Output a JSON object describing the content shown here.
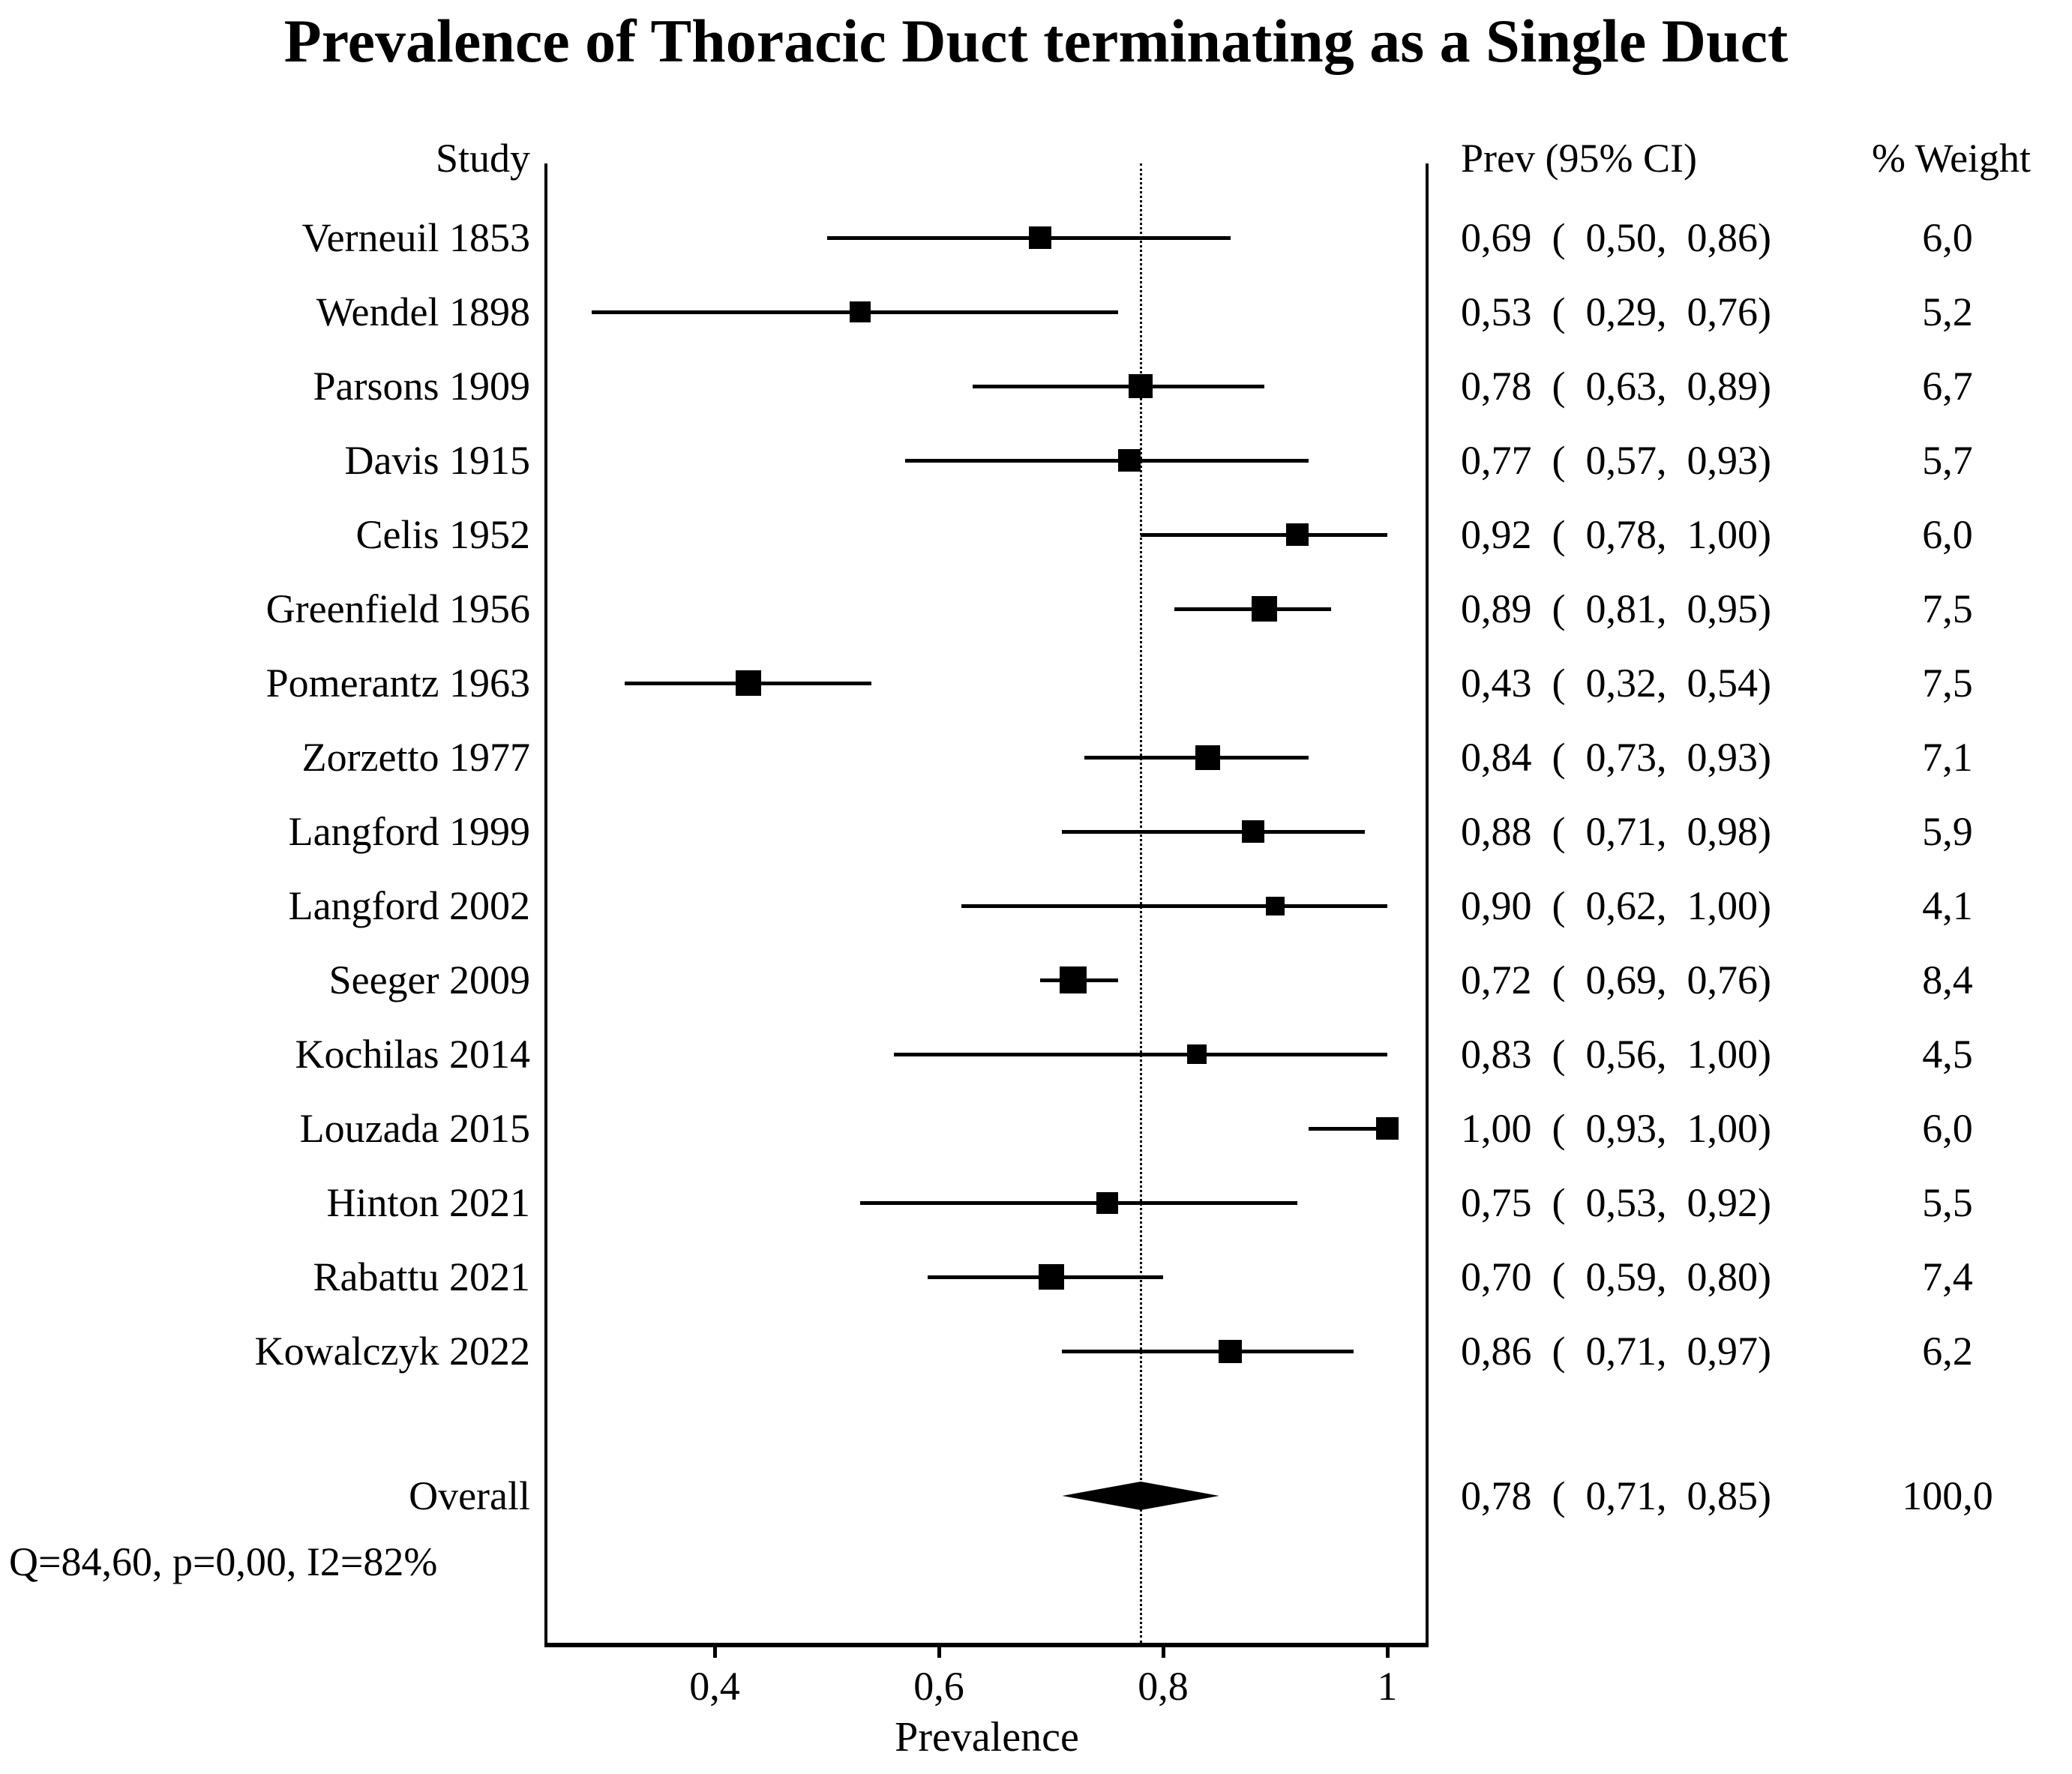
{
  "title": "Prevalence of Thoracic Duct terminating as a Single Duct",
  "columns": {
    "study": "Study",
    "prev_ci": "Prev (95% CI)",
    "weight": "% Weight"
  },
  "chart_data": {
    "type": "forest",
    "title": "Prevalence of Thoracic Duct terminating as a Single Duct",
    "xlabel": "Prevalence",
    "x_domain": [
      0.25,
      1.04
    ],
    "x_ticks": [
      {
        "value": 0.4,
        "label": "0,4"
      },
      {
        "value": 0.6,
        "label": "0,6"
      },
      {
        "value": 0.8,
        "label": "0,8"
      },
      {
        "value": 1.0,
        "label": "1"
      }
    ],
    "reference_line": 0.78,
    "grid": false,
    "studies": [
      {
        "label": "Verneuil 1853",
        "est": 0.69,
        "lo": 0.5,
        "hi": 0.86,
        "weight": 6.0,
        "prev_ci_text": "0,69  (  0,50,  0,86)",
        "weight_text": "6,0"
      },
      {
        "label": "Wendel 1898",
        "est": 0.53,
        "lo": 0.29,
        "hi": 0.76,
        "weight": 5.2,
        "prev_ci_text": "0,53  (  0,29,  0,76)",
        "weight_text": "5,2"
      },
      {
        "label": "Parsons 1909",
        "est": 0.78,
        "lo": 0.63,
        "hi": 0.89,
        "weight": 6.7,
        "prev_ci_text": "0,78  (  0,63,  0,89)",
        "weight_text": "6,7"
      },
      {
        "label": "Davis 1915",
        "est": 0.77,
        "lo": 0.57,
        "hi": 0.93,
        "weight": 5.7,
        "prev_ci_text": "0,77  (  0,57,  0,93)",
        "weight_text": "5,7"
      },
      {
        "label": "Celis 1952",
        "est": 0.92,
        "lo": 0.78,
        "hi": 1.0,
        "weight": 6.0,
        "prev_ci_text": "0,92  (  0,78,  1,00)",
        "weight_text": "6,0"
      },
      {
        "label": "Greenfield 1956",
        "est": 0.89,
        "lo": 0.81,
        "hi": 0.95,
        "weight": 7.5,
        "prev_ci_text": "0,89  (  0,81,  0,95)",
        "weight_text": "7,5"
      },
      {
        "label": "Pomerantz 1963",
        "est": 0.43,
        "lo": 0.32,
        "hi": 0.54,
        "weight": 7.5,
        "prev_ci_text": "0,43  (  0,32,  0,54)",
        "weight_text": "7,5"
      },
      {
        "label": "Zorzetto 1977",
        "est": 0.84,
        "lo": 0.73,
        "hi": 0.93,
        "weight": 7.1,
        "prev_ci_text": "0,84  (  0,73,  0,93)",
        "weight_text": "7,1"
      },
      {
        "label": "Langford 1999",
        "est": 0.88,
        "lo": 0.71,
        "hi": 0.98,
        "weight": 5.9,
        "prev_ci_text": "0,88  (  0,71,  0,98)",
        "weight_text": "5,9"
      },
      {
        "label": "Langford 2002",
        "est": 0.9,
        "lo": 0.62,
        "hi": 1.0,
        "weight": 4.1,
        "prev_ci_text": "0,90  (  0,62,  1,00)",
        "weight_text": "4,1"
      },
      {
        "label": "Seeger 2009",
        "est": 0.72,
        "lo": 0.69,
        "hi": 0.76,
        "weight": 8.4,
        "prev_ci_text": "0,72  (  0,69,  0,76)",
        "weight_text": "8,4"
      },
      {
        "label": "Kochilas 2014",
        "est": 0.83,
        "lo": 0.56,
        "hi": 1.0,
        "weight": 4.5,
        "prev_ci_text": "0,83  (  0,56,  1,00)",
        "weight_text": "4,5"
      },
      {
        "label": "Louzada 2015",
        "est": 1.0,
        "lo": 0.93,
        "hi": 1.0,
        "weight": 6.0,
        "prev_ci_text": "1,00  (  0,93,  1,00)",
        "weight_text": "6,0"
      },
      {
        "label": "Hinton 2021",
        "est": 0.75,
        "lo": 0.53,
        "hi": 0.92,
        "weight": 5.5,
        "prev_ci_text": "0,75  (  0,53,  0,92)",
        "weight_text": "5,5"
      },
      {
        "label": "Rabattu 2021",
        "est": 0.7,
        "lo": 0.59,
        "hi": 0.8,
        "weight": 7.4,
        "prev_ci_text": "0,70  (  0,59,  0,80)",
        "weight_text": "7,4"
      },
      {
        "label": "Kowalczyk 2022",
        "est": 0.86,
        "lo": 0.71,
        "hi": 0.97,
        "weight": 6.2,
        "prev_ci_text": "0,86  (  0,71,  0,97)",
        "weight_text": "6,2"
      }
    ],
    "overall": {
      "label": "Overall",
      "est": 0.78,
      "lo": 0.71,
      "hi": 0.85,
      "prev_ci_text": "0,78  (  0,71,  0,85)",
      "weight_text": "100,0"
    },
    "heterogeneity_text": "Q=84,60, p=0,00, I2=82%",
    "marker_color": "#000000",
    "background_color": "#ffffff"
  }
}
